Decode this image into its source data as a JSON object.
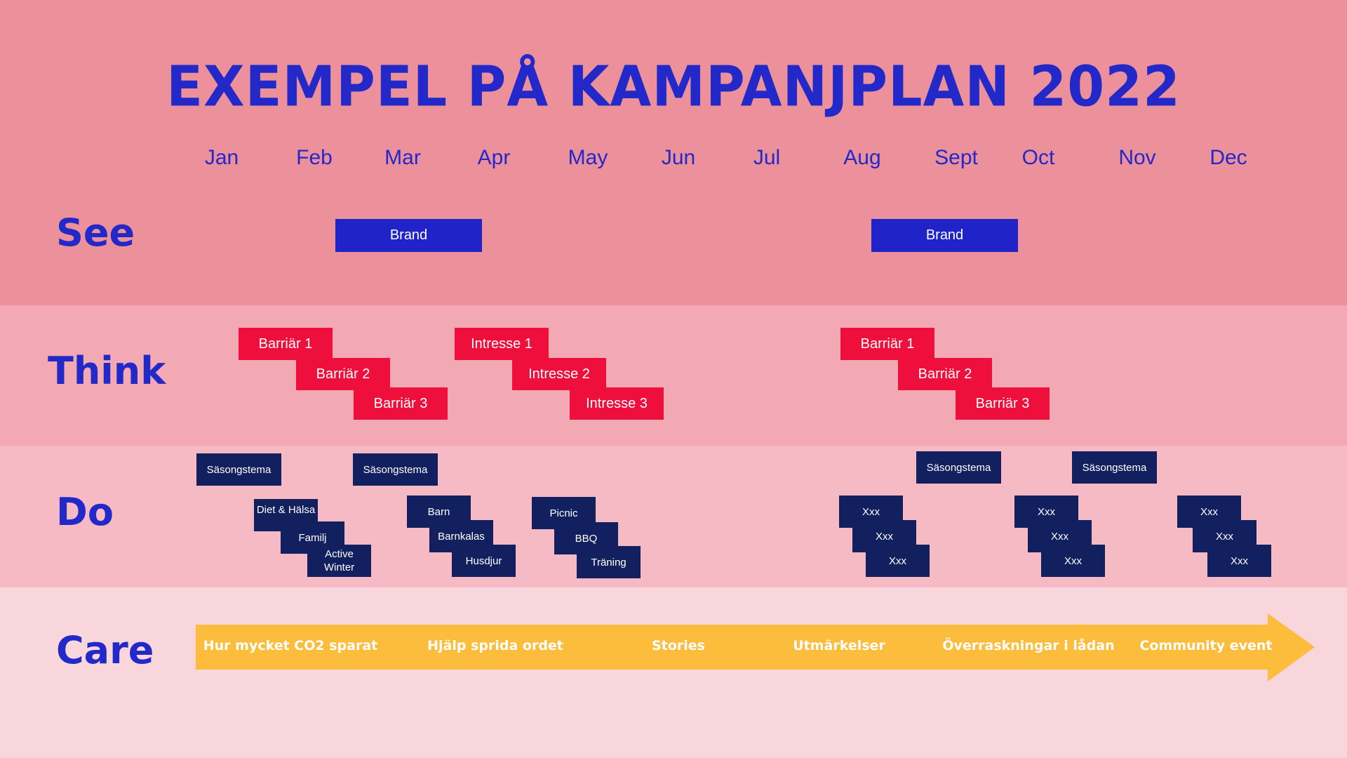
{
  "title": "EXEMPEL PÅ KAMPANJPLAN 2022",
  "months": [
    "Jan",
    "Feb",
    "Mar",
    "Apr",
    "May",
    "Jun",
    "Jul",
    "Aug",
    "Sept",
    "Oct",
    "Nov",
    "Dec"
  ],
  "rows": {
    "see": "See",
    "think": "Think",
    "do": "Do",
    "care": "Care"
  },
  "see": {
    "brand_1": "Brand",
    "brand_2": "Brand"
  },
  "think": {
    "group_1": [
      "Barriär 1",
      "Barriär 2",
      "Barriär 3"
    ],
    "group_2": [
      "Intresse 1",
      "Intresse 2",
      "Intresse 3"
    ],
    "group_3": [
      "Barriär 1",
      "Barriär 2",
      "Barriär 3"
    ]
  },
  "do": {
    "season_1": "Säsongstema",
    "season_2": "Säsongstema",
    "season_3": "Säsongstema",
    "season_4": "Säsongstema",
    "group_1": [
      "Diet & Hälsa",
      "Familj",
      "Active Winter"
    ],
    "group_2": [
      "Barn",
      "Barnkalas",
      "Husdjur"
    ],
    "group_3": [
      "Picnic",
      "BBQ",
      "Träning"
    ],
    "group_4": [
      "Xxx",
      "Xxx",
      "Xxx"
    ],
    "group_5": [
      "Xxx",
      "Xxx",
      "Xxx"
    ],
    "group_6": [
      "Xxx",
      "Xxx",
      "Xxx"
    ]
  },
  "care": [
    "Hur mycket CO2 sparat",
    "Hjälp sprida ordet",
    "Stories",
    "Utmärkelser",
    "Överraskningar i lådan",
    "Community event"
  ],
  "colors": {
    "see_band": "#ec909b",
    "think_band": "#f2a9b3",
    "do_band": "#f5bac4",
    "care_band": "#f8d6dc",
    "title": "#2328c8",
    "brand": "#2024c8",
    "think_box": "#ee0f3c",
    "do_box": "#12205f",
    "arrow": "#fbbd3b"
  }
}
